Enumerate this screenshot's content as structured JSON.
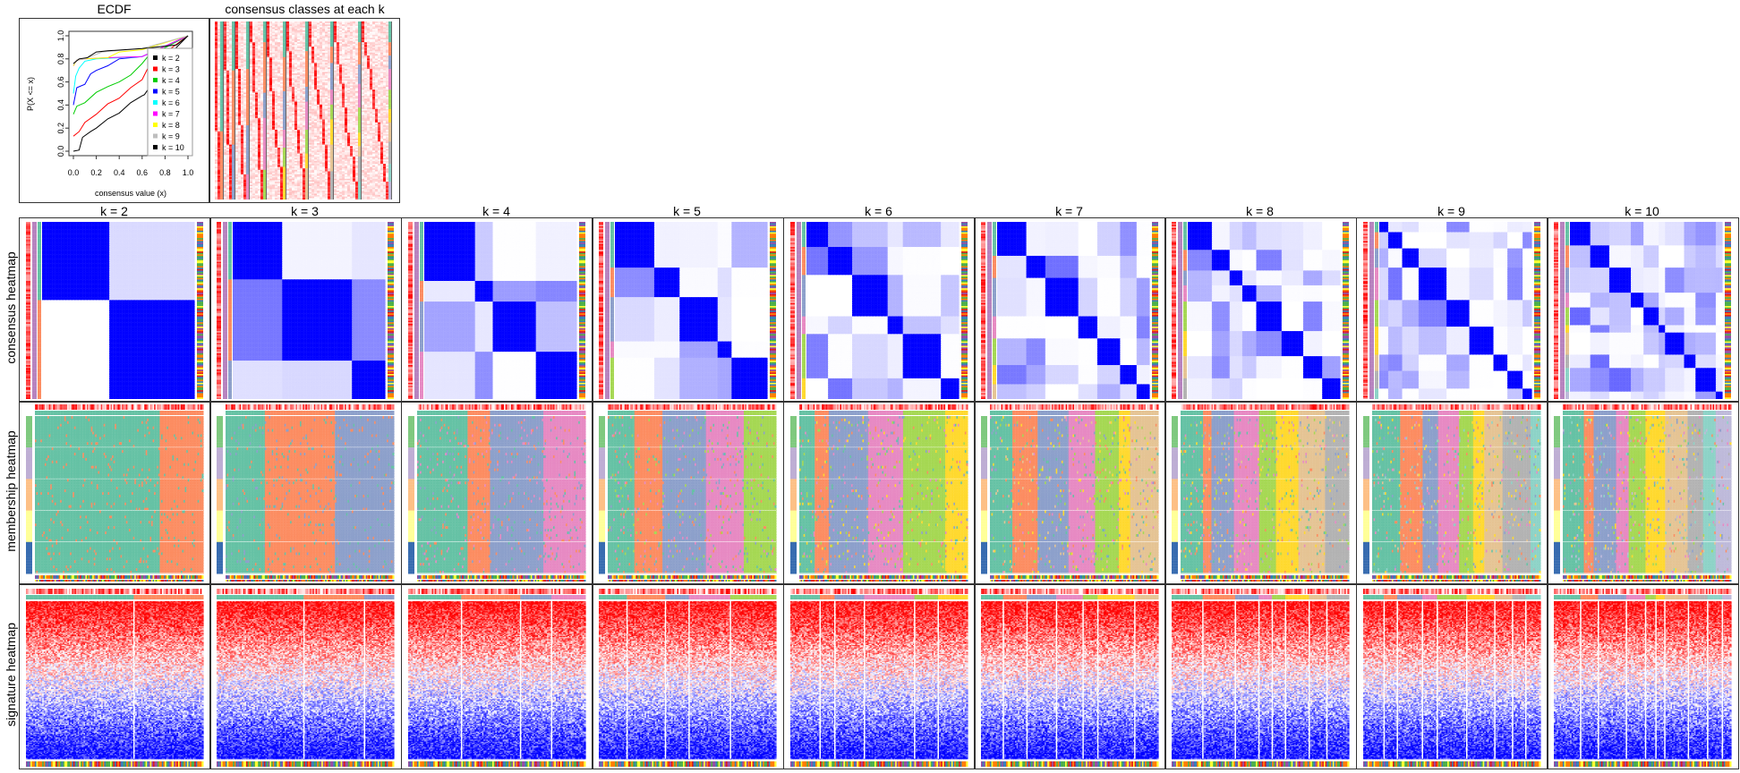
{
  "ecdf_panel": {
    "title": "ECDF",
    "xlabel": "consensus value (x)",
    "ylabel": "P(X <= x)",
    "xticks": [
      "0.0",
      "0.2",
      "0.4",
      "0.6",
      "0.8",
      "1.0"
    ],
    "yticks": [
      "0.0",
      "0.2",
      "0.4",
      "0.6",
      "0.8",
      "1.0"
    ]
  },
  "classes_panel": {
    "title": "consensus classes at each k"
  },
  "row_labels": [
    "consensus heatmap",
    "membership heatmap",
    "signature heatmap"
  ],
  "k_titles": [
    "k = 2",
    "k = 3",
    "k = 4",
    "k = 5",
    "k = 6",
    "k = 7",
    "k = 8",
    "k = 9",
    "k = 10"
  ],
  "colors": {
    "consensus_high": "#0000ff",
    "signature_high": "#ff0000",
    "signature_low": "#0000ff",
    "class_palette": [
      "#66c2a5",
      "#fc8d62",
      "#8da0cb",
      "#e78ac3",
      "#a6d854",
      "#ffd92f",
      "#e5c494",
      "#b3b3b3",
      "#8dd3c7",
      "#bebada"
    ],
    "annotation_palette": [
      "#e41a1c",
      "#377eb8",
      "#4daf4a",
      "#984ea3",
      "#ff7f00",
      "#ffff33"
    ],
    "membership_row_palette": [
      "#7fc97f",
      "#beaed4",
      "#fdc086",
      "#ffff99",
      "#386cb0"
    ]
  },
  "chart_data": [
    {
      "type": "line",
      "title": "ECDF",
      "xlabel": "consensus value (x)",
      "ylabel": "P(X <= x)",
      "xlim": [
        0,
        1
      ],
      "ylim": [
        0,
        1
      ],
      "legend_position": "right",
      "series": [
        {
          "name": "k = 2",
          "color": "#000000",
          "x": [
            0,
            0.05,
            0.08,
            0.15,
            0.2,
            0.3,
            0.4,
            0.5,
            0.6,
            0.62,
            0.9,
            1.0
          ],
          "y": [
            0,
            0.01,
            0.12,
            0.17,
            0.2,
            0.28,
            0.33,
            0.42,
            0.48,
            0.49,
            0.9,
            1.0
          ]
        },
        {
          "name": "k = 3",
          "color": "#ff0000",
          "x": [
            0,
            0.05,
            0.1,
            0.2,
            0.3,
            0.4,
            0.5,
            0.6,
            0.65,
            0.7,
            1.0
          ],
          "y": [
            0.13,
            0.17,
            0.25,
            0.32,
            0.41,
            0.46,
            0.55,
            0.62,
            0.72,
            0.78,
            1.0
          ]
        },
        {
          "name": "k = 4",
          "color": "#00cd00",
          "x": [
            0,
            0.03,
            0.1,
            0.2,
            0.3,
            0.4,
            0.5,
            0.6,
            0.65,
            1.0
          ],
          "y": [
            0.32,
            0.39,
            0.42,
            0.51,
            0.56,
            0.6,
            0.66,
            0.76,
            0.82,
            1.0
          ]
        },
        {
          "name": "k = 5",
          "color": "#0000ff",
          "x": [
            0,
            0.03,
            0.1,
            0.15,
            0.2,
            0.3,
            0.4,
            0.6,
            1.0
          ],
          "y": [
            0.4,
            0.55,
            0.58,
            0.67,
            0.7,
            0.74,
            0.8,
            0.82,
            1.0
          ]
        },
        {
          "name": "k = 6",
          "color": "#00ffff",
          "x": [
            0,
            0.02,
            0.05,
            0.1,
            0.2,
            0.6,
            1.0
          ],
          "y": [
            0.5,
            0.65,
            0.72,
            0.78,
            0.8,
            0.82,
            1.0
          ]
        },
        {
          "name": "k = 7",
          "color": "#ff00ff",
          "x": [
            0,
            0.03,
            0.1,
            0.3,
            0.6,
            1.0
          ],
          "y": [
            0.74,
            0.79,
            0.8,
            0.81,
            0.82,
            1.0
          ]
        },
        {
          "name": "k = 8",
          "color": "#ffff00",
          "x": [
            0,
            0.03,
            0.1,
            0.3,
            0.4,
            0.6,
            1.0
          ],
          "y": [
            0.74,
            0.79,
            0.8,
            0.81,
            0.86,
            0.88,
            1.0
          ]
        },
        {
          "name": "k = 9",
          "color": "#bebebe",
          "x": [
            0,
            0.03,
            0.1,
            0.25,
            0.6,
            1.0
          ],
          "y": [
            0.75,
            0.79,
            0.8,
            0.86,
            0.89,
            1.0
          ]
        },
        {
          "name": "k = 10",
          "color": "#000000",
          "x": [
            0,
            0.05,
            0.12,
            0.2,
            0.3,
            0.6,
            0.9,
            1.0
          ],
          "y": [
            0.76,
            0.8,
            0.81,
            0.86,
            0.87,
            0.89,
            0.92,
            1.0
          ]
        }
      ]
    },
    {
      "type": "heatmap",
      "title": "consensus classes at each k",
      "k": [
        2,
        3,
        4,
        5,
        6,
        7,
        8,
        9,
        10
      ]
    },
    {
      "type": "heatmap",
      "row": "consensus heatmap",
      "k": [
        2,
        3,
        4,
        5,
        6,
        7,
        8,
        9,
        10
      ]
    },
    {
      "type": "heatmap",
      "row": "membership heatmap",
      "k": [
        2,
        3,
        4,
        5,
        6,
        7,
        8,
        9,
        10
      ]
    },
    {
      "type": "heatmap",
      "row": "signature heatmap",
      "k": [
        2,
        3,
        4,
        5,
        6,
        7,
        8,
        9,
        10
      ]
    }
  ]
}
